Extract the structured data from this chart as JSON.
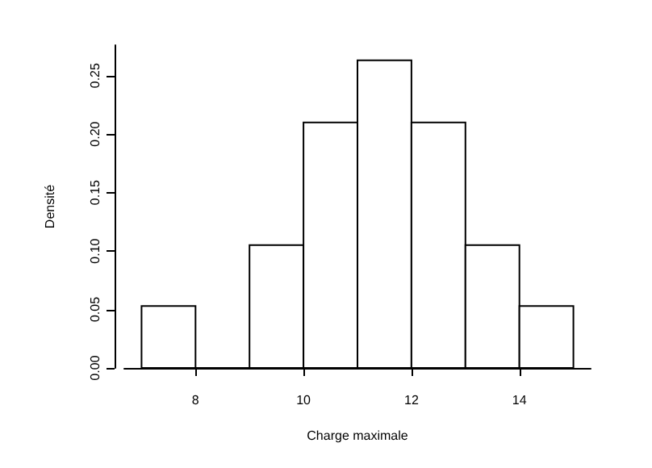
{
  "chart_data": {
    "type": "histogram",
    "xlabel": "Charge maximale",
    "ylabel": "Densité",
    "bins": [
      7,
      8,
      9,
      10,
      11,
      12,
      13,
      14,
      15
    ],
    "values": [
      0.053,
      0,
      0.105,
      0.21,
      0.263,
      0.21,
      0.105,
      0.053
    ],
    "color": "#ffffff",
    "xlim": [
      6.68,
      15.32
    ],
    "xticks": [
      8,
      10,
      12,
      14
    ],
    "ylim": [
      0,
      0.276
    ],
    "yticks": [
      {
        "value": 0,
        "label": "0.00"
      },
      {
        "value": 0.05,
        "label": "0.05"
      },
      {
        "value": 0.1,
        "label": "0.10"
      },
      {
        "value": 0.15,
        "label": "0.15"
      },
      {
        "value": 0.2,
        "label": "0.20"
      },
      {
        "value": 0.25,
        "label": "0.25"
      }
    ],
    "grid": false
  }
}
